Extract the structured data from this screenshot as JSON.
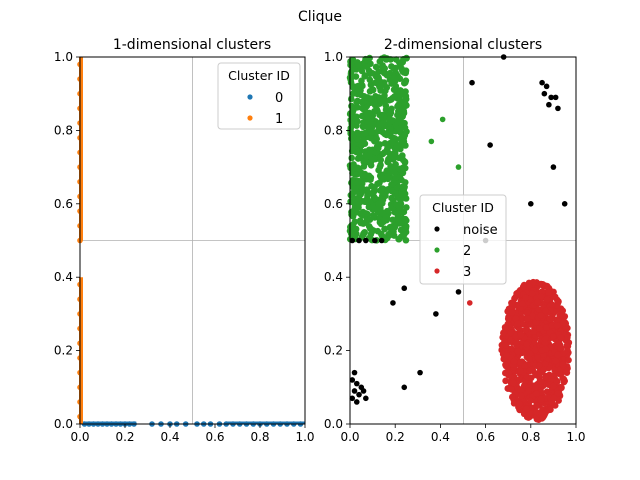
{
  "figure": {
    "suptitle": "Clique"
  },
  "chart_data": [
    {
      "type": "scatter",
      "title": "1-dimensional clusters",
      "xlabel": "",
      "ylabel": "",
      "xlim": [
        0,
        1
      ],
      "ylim": [
        0,
        1
      ],
      "xticks": [
        "0.0",
        "0.2",
        "0.4",
        "0.6",
        "0.8",
        "1.0"
      ],
      "yticks": [
        "0.0",
        "0.2",
        "0.4",
        "0.6",
        "0.8",
        "1.0"
      ],
      "grid": true,
      "grid_lines": {
        "x": [
          0.5
        ],
        "y": [
          0.5
        ]
      },
      "legend": {
        "title": "Cluster ID",
        "position": "upper-right"
      },
      "series": [
        {
          "name": "0",
          "color": "#1f77b4",
          "points": [
            [
              0.02,
              0
            ],
            [
              0.04,
              0
            ],
            [
              0.06,
              0
            ],
            [
              0.08,
              0
            ],
            [
              0.1,
              0
            ],
            [
              0.12,
              0
            ],
            [
              0.14,
              0
            ],
            [
              0.16,
              0
            ],
            [
              0.18,
              0
            ],
            [
              0.2,
              0
            ],
            [
              0.22,
              0
            ],
            [
              0.24,
              0
            ],
            [
              0.32,
              0
            ],
            [
              0.36,
              0
            ],
            [
              0.4,
              0
            ],
            [
              0.43,
              0
            ],
            [
              0.47,
              0
            ],
            [
              0.52,
              0
            ],
            [
              0.55,
              0
            ],
            [
              0.58,
              0
            ],
            [
              0.62,
              0
            ],
            [
              0.65,
              0
            ],
            [
              0.68,
              0
            ],
            [
              0.71,
              0
            ],
            [
              0.74,
              0
            ],
            [
              0.77,
              0
            ],
            [
              0.8,
              0
            ],
            [
              0.83,
              0
            ],
            [
              0.86,
              0
            ],
            [
              0.89,
              0
            ],
            [
              0.92,
              0
            ],
            [
              0.95,
              0
            ],
            [
              0.98,
              0
            ]
          ]
        },
        {
          "name": "1",
          "color": "#ff7f0e",
          "points": [
            [
              0,
              0.02
            ],
            [
              0,
              0.06
            ],
            [
              0,
              0.1
            ],
            [
              0,
              0.14
            ],
            [
              0,
              0.18
            ],
            [
              0,
              0.22
            ],
            [
              0,
              0.26
            ],
            [
              0,
              0.3
            ],
            [
              0,
              0.34
            ],
            [
              0,
              0.38
            ],
            [
              0,
              0.5
            ],
            [
              0,
              0.54
            ],
            [
              0,
              0.58
            ],
            [
              0,
              0.62
            ],
            [
              0,
              0.66
            ],
            [
              0,
              0.7
            ],
            [
              0,
              0.74
            ],
            [
              0,
              0.78
            ],
            [
              0,
              0.82
            ],
            [
              0,
              0.86
            ],
            [
              0,
              0.9
            ],
            [
              0,
              0.94
            ],
            [
              0,
              0.98
            ]
          ]
        }
      ]
    },
    {
      "type": "scatter",
      "title": "2-dimensional clusters",
      "xlabel": "",
      "ylabel": "",
      "xlim": [
        0,
        1
      ],
      "ylim": [
        0,
        1
      ],
      "xticks": [
        "0.0",
        "0.2",
        "0.4",
        "0.6",
        "0.8",
        "1.0"
      ],
      "yticks": [
        "0.0",
        "0.2",
        "0.4",
        "0.6",
        "0.8",
        "1.0"
      ],
      "grid": true,
      "grid_lines": {
        "x": [
          0.5
        ],
        "y": [
          0.5
        ]
      },
      "legend": {
        "title": "Cluster ID",
        "position": "center"
      },
      "series": [
        {
          "name": "noise",
          "color": "#000000",
          "points": [
            [
              0.68,
              1.0
            ],
            [
              0.54,
              0.93
            ],
            [
              0.62,
              0.76
            ],
            [
              0.85,
              0.93
            ],
            [
              0.87,
              0.92
            ],
            [
              0.86,
              0.9
            ],
            [
              0.89,
              0.89
            ],
            [
              0.91,
              0.89
            ],
            [
              0.88,
              0.87
            ],
            [
              0.92,
              0.86
            ],
            [
              0.9,
              0.7
            ],
            [
              0.8,
              0.6
            ],
            [
              0.95,
              0.6
            ],
            [
              0.6,
              0.5
            ],
            [
              0.24,
              0.37
            ],
            [
              0.19,
              0.33
            ],
            [
              0.38,
              0.3
            ],
            [
              0.48,
              0.36
            ],
            [
              0.31,
              0.14
            ],
            [
              0.24,
              0.1
            ],
            [
              0.02,
              0.14
            ],
            [
              0.01,
              0.12
            ],
            [
              0.03,
              0.11
            ],
            [
              0.02,
              0.09
            ],
            [
              0.05,
              0.1
            ],
            [
              0.04,
              0.08
            ],
            [
              0.06,
              0.09
            ],
            [
              0.01,
              0.07
            ],
            [
              0.03,
              0.06
            ],
            [
              0.07,
              0.07
            ],
            [
              0.01,
              0.5
            ],
            [
              0.04,
              0.5
            ],
            [
              0.07,
              0.5
            ],
            [
              0.11,
              0.5
            ],
            [
              0.14,
              0.5
            ]
          ]
        },
        {
          "name": "2",
          "color": "#2ca02c",
          "region": {
            "x": [
              0,
              0.25
            ],
            "y": [
              0.5,
              1.0
            ]
          },
          "points": [
            [
              0.36,
              0.77
            ],
            [
              0.41,
              0.83
            ],
            [
              0.48,
              0.7
            ]
          ]
        },
        {
          "name": "3",
          "color": "#d62728",
          "region": {
            "center": [
              0.82,
              0.2
            ],
            "rx": 0.15,
            "ry": 0.19
          },
          "points": [
            [
              0.53,
              0.33
            ]
          ]
        }
      ]
    }
  ]
}
